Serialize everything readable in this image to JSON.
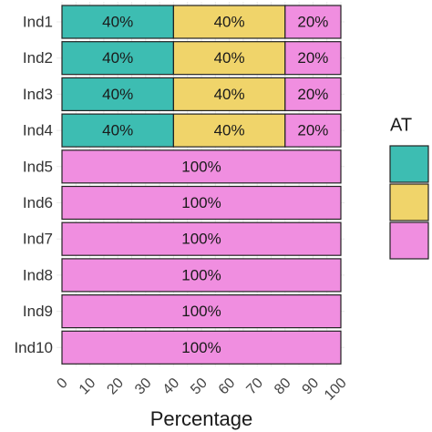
{
  "chart_data": {
    "type": "stacked-bar-horizontal",
    "categories": [
      "Ind1",
      "Ind2",
      "Ind3",
      "Ind4",
      "Ind5",
      "Ind6",
      "Ind7",
      "Ind8",
      "Ind9",
      "Ind10"
    ],
    "series": [
      {
        "color": "#3dbdb2",
        "values": [
          40,
          40,
          40,
          40,
          0,
          0,
          0,
          0,
          0,
          0
        ],
        "value_labels": [
          "40%",
          "40%",
          "40%",
          "40%",
          null,
          null,
          null,
          null,
          null,
          null
        ]
      },
      {
        "color": "#f0d46a",
        "values": [
          40,
          40,
          40,
          40,
          0,
          0,
          0,
          0,
          0,
          0
        ],
        "value_labels": [
          "40%",
          "40%",
          "40%",
          "40%",
          null,
          null,
          null,
          null,
          null,
          null
        ]
      },
      {
        "color": "#f08ee0",
        "values": [
          20,
          20,
          20,
          20,
          100,
          100,
          100,
          100,
          100,
          100
        ],
        "value_labels": [
          "20%",
          "20%",
          "20%",
          "20%",
          "100%",
          "100%",
          "100%",
          "100%",
          "100%",
          "100%"
        ]
      }
    ],
    "x_label": "Percentage",
    "legend_title": "AT",
    "legend_position": "right",
    "xlim": [
      0,
      100
    ],
    "xticks": [
      0,
      10,
      20,
      30,
      40,
      50,
      60,
      70,
      80,
      90,
      100
    ],
    "grid": true
  }
}
